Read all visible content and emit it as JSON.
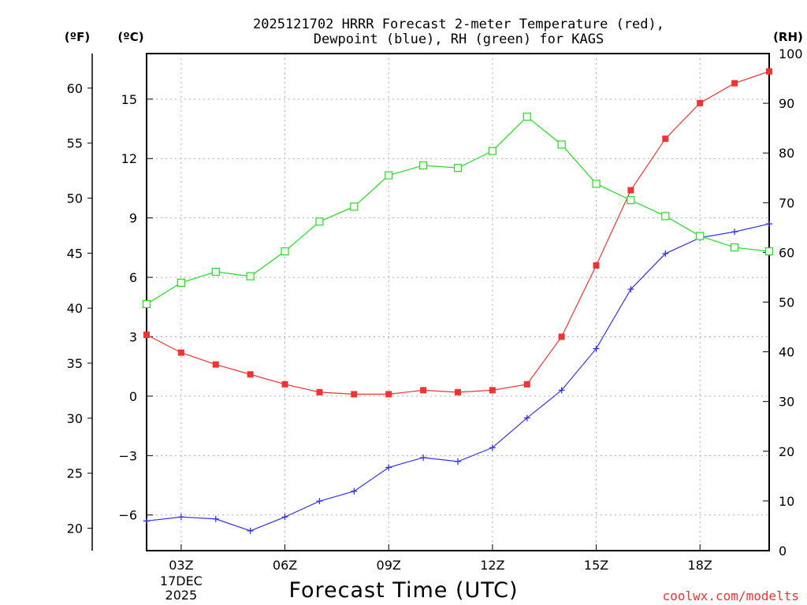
{
  "chart_data": {
    "type": "line",
    "title_line1": "2025121702 HRRR Forecast 2-meter Temperature (red),",
    "title_line2": "Dewpoint (blue), RH (green) for KAGS",
    "xlabel": "Forecast Time (UTC)",
    "watermark": "coolwx.com/modelts",
    "unit_labels": {
      "fahrenheit": "(ºF)",
      "celsius": "(ºC)",
      "rh": "(RH)"
    },
    "x": [
      2,
      3,
      4,
      5,
      6,
      7,
      8,
      9,
      10,
      11,
      12,
      13,
      14,
      15,
      16,
      17,
      18,
      19,
      20
    ],
    "xlim": [
      2,
      20
    ],
    "x_ticks": [
      {
        "x": 3,
        "label": "03Z",
        "sub1": "17DEC",
        "sub2": "2025"
      },
      {
        "x": 6,
        "label": "06Z"
      },
      {
        "x": 9,
        "label": "09Z"
      },
      {
        "x": 12,
        "label": "12Z"
      },
      {
        "x": 15,
        "label": "15Z"
      },
      {
        "x": 18,
        "label": "18Z"
      }
    ],
    "ylim_celsius": [
      -7.8,
      17.3
    ],
    "y_ticks_celsius": [
      {
        "v": -6,
        "label": "−6"
      },
      {
        "v": -3,
        "label": "−3"
      },
      {
        "v": 0,
        "label": "0"
      },
      {
        "v": 3,
        "label": "3"
      },
      {
        "v": 6,
        "label": "6"
      },
      {
        "v": 9,
        "label": "9"
      },
      {
        "v": 12,
        "label": "12"
      },
      {
        "v": 15,
        "label": "15"
      }
    ],
    "y_ticks_fahrenheit": [
      {
        "v": 20,
        "label": "20"
      },
      {
        "v": 25,
        "label": "25"
      },
      {
        "v": 30,
        "label": "30"
      },
      {
        "v": 35,
        "label": "35"
      },
      {
        "v": 40,
        "label": "40"
      },
      {
        "v": 45,
        "label": "45"
      },
      {
        "v": 50,
        "label": "50"
      },
      {
        "v": 55,
        "label": "55"
      },
      {
        "v": 60,
        "label": "60"
      }
    ],
    "ylim_rh": [
      0,
      100
    ],
    "y_ticks_rh": [
      {
        "v": 0,
        "label": "0"
      },
      {
        "v": 10,
        "label": "10"
      },
      {
        "v": 20,
        "label": "20"
      },
      {
        "v": 30,
        "label": "30"
      },
      {
        "v": 40,
        "label": "40"
      },
      {
        "v": 50,
        "label": "50"
      },
      {
        "v": 60,
        "label": "60"
      },
      {
        "v": 70,
        "label": "70"
      },
      {
        "v": 80,
        "label": "80"
      },
      {
        "v": 90,
        "label": "90"
      },
      {
        "v": 100,
        "label": "100"
      }
    ],
    "series": [
      {
        "name": "Temperature",
        "axis": "celsius",
        "color": "#ee3333",
        "marker": "filled-square",
        "values": [
          3.1,
          2.2,
          1.6,
          1.1,
          0.6,
          0.2,
          0.1,
          0.1,
          0.3,
          0.2,
          0.3,
          0.6,
          3.0,
          6.6,
          10.4,
          13.0,
          14.8,
          15.8,
          16.4
        ]
      },
      {
        "name": "Dewpoint",
        "axis": "celsius",
        "color": "#3333ee",
        "marker": "plus",
        "values": [
          -6.3,
          -6.1,
          -6.2,
          -6.8,
          -6.1,
          -5.3,
          -4.8,
          -3.6,
          -3.1,
          -3.3,
          -2.6,
          -1.1,
          0.3,
          2.4,
          5.4,
          7.2,
          8.0,
          8.3,
          8.7
        ]
      },
      {
        "name": "RH",
        "axis": "rh",
        "color": "#22dd22",
        "marker": "open-square",
        "values": [
          49.6,
          53.9,
          56.1,
          55.2,
          60.2,
          66.2,
          69.2,
          75.5,
          77.5,
          77.0,
          80.4,
          87.3,
          81.7,
          73.8,
          70.5,
          67.3,
          63.3,
          61.0,
          60.2
        ]
      }
    ]
  }
}
